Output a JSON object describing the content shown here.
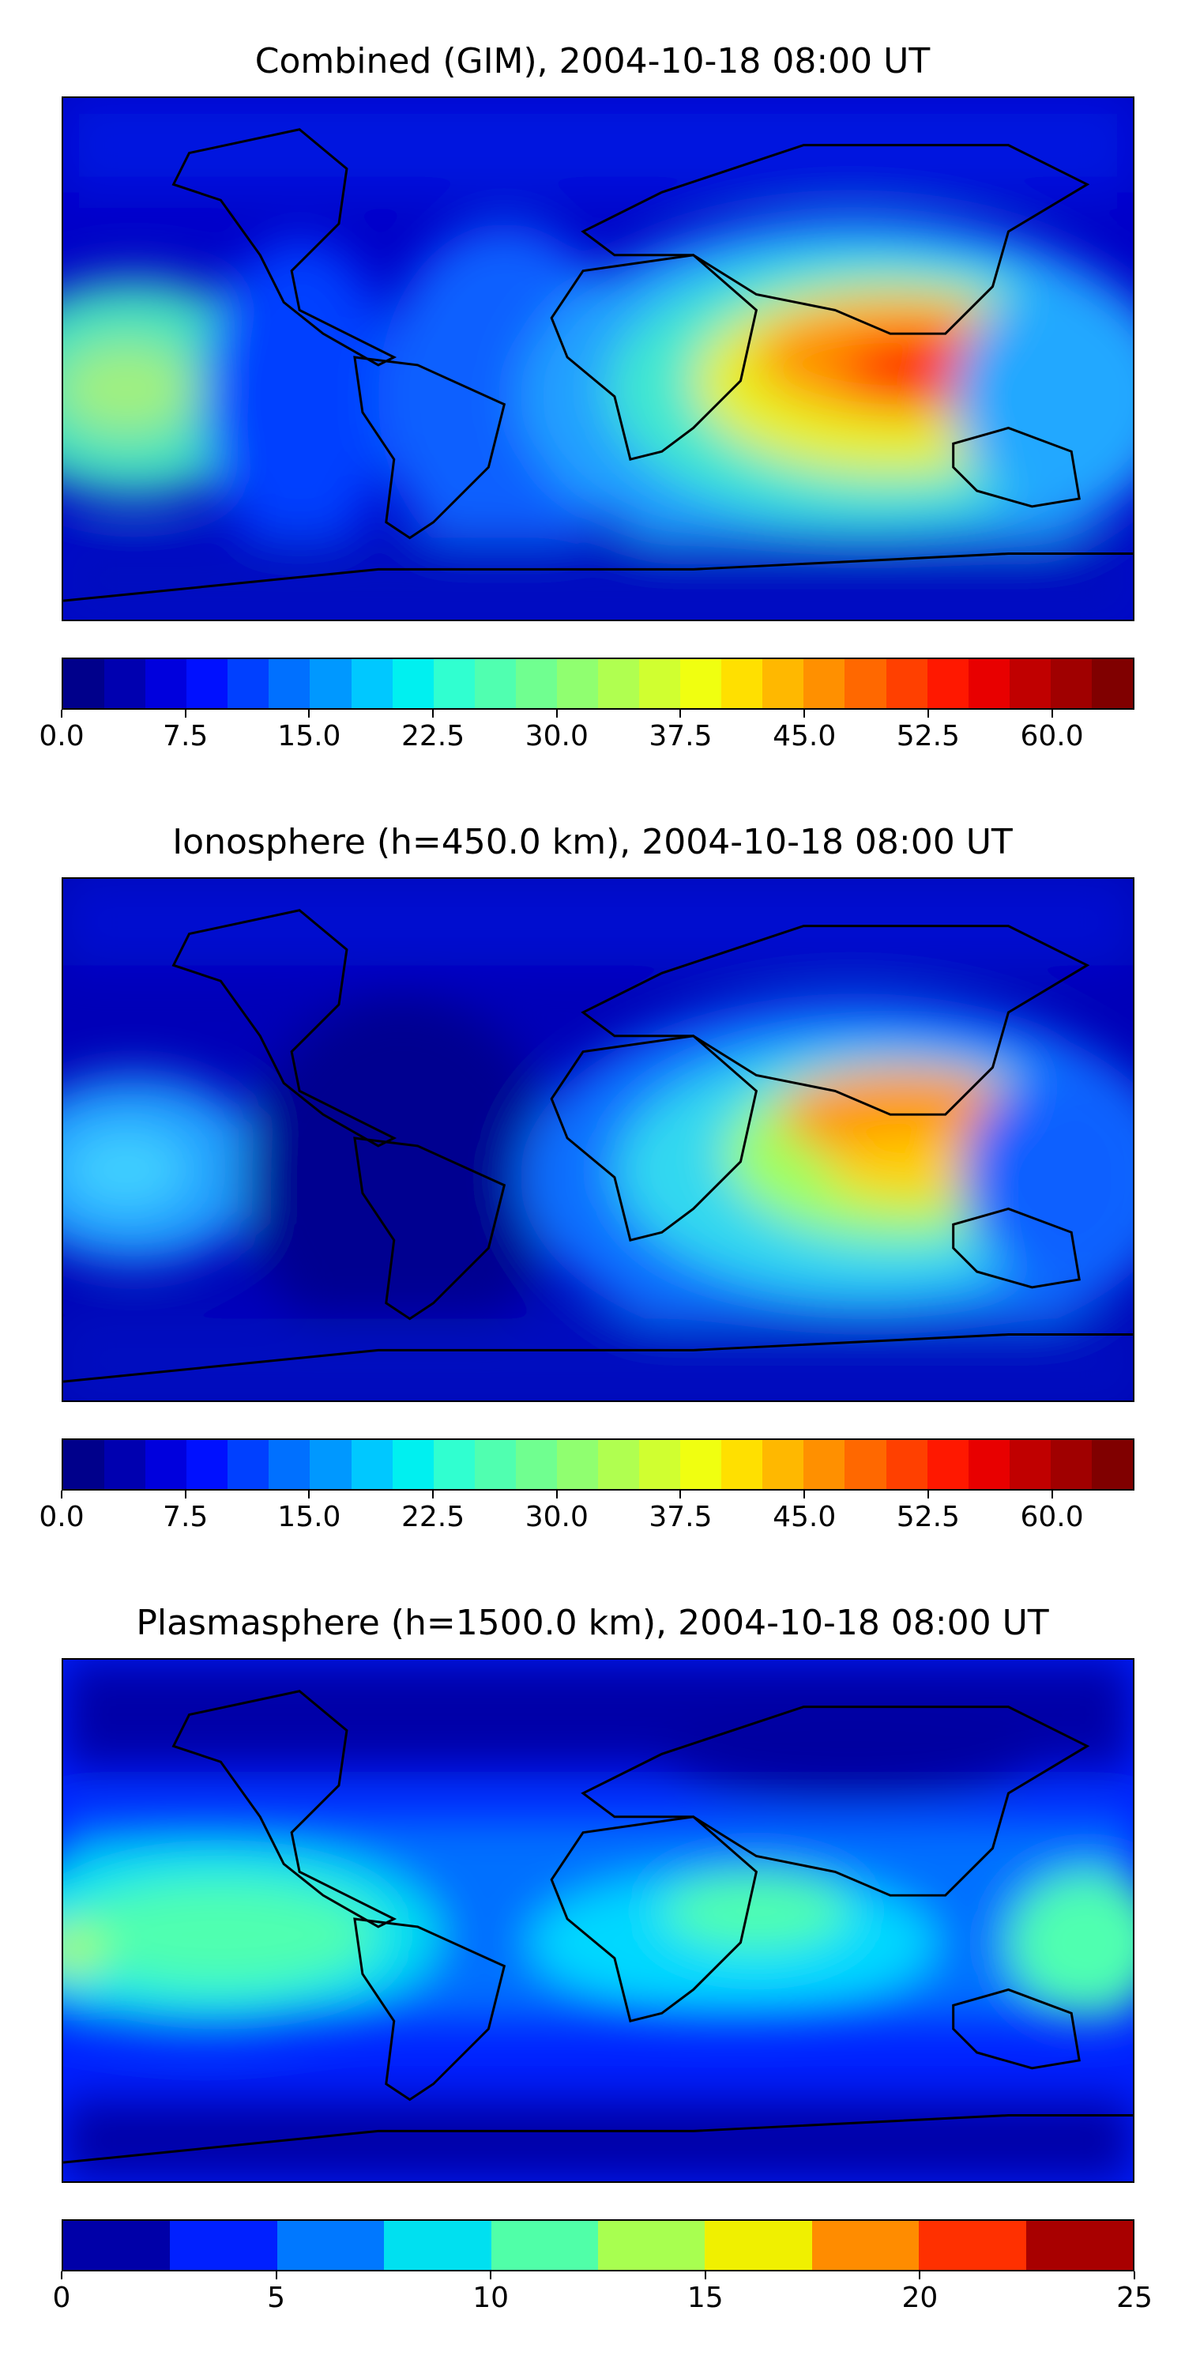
{
  "panels": [
    {
      "title": "Combined (GIM), 2004-10-18 08:00 UT",
      "colorbar": {
        "min": 0.0,
        "max": 65.0,
        "levels": 26,
        "tick_values": [
          0.0,
          7.5,
          15.0,
          22.5,
          30.0,
          37.5,
          45.0,
          52.5,
          60.0
        ],
        "tick_labels": [
          "0.0",
          "7.5",
          "15.0",
          "22.5",
          "30.0",
          "37.5",
          "45.0",
          "52.5",
          "60.0"
        ]
      }
    },
    {
      "title": "Ionosphere  (h=450.0 km), 2004-10-18 08:00 UT",
      "colorbar": {
        "min": 0.0,
        "max": 65.0,
        "levels": 26,
        "tick_values": [
          0.0,
          7.5,
          15.0,
          22.5,
          30.0,
          37.5,
          45.0,
          52.5,
          60.0
        ],
        "tick_labels": [
          "0.0",
          "7.5",
          "15.0",
          "22.5",
          "30.0",
          "37.5",
          "45.0",
          "52.5",
          "60.0"
        ]
      }
    },
    {
      "title": "Plasmasphere (h=1500.0 km), 2004-10-18 08:00 UT",
      "colorbar": {
        "min": 0,
        "max": 25,
        "levels": 10,
        "tick_values": [
          0,
          5,
          10,
          15,
          20,
          25
        ],
        "tick_labels": [
          "0",
          "5",
          "10",
          "15",
          "20",
          "25"
        ]
      }
    }
  ],
  "colormap": "jet",
  "map_projection": "equirectangular, coastlines in black"
}
